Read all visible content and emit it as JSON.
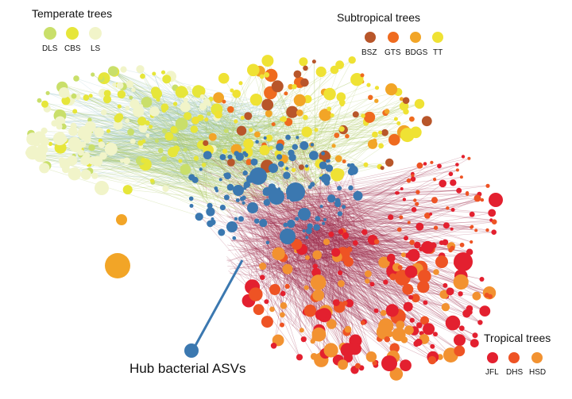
{
  "legends": {
    "temperate": {
      "title": "Temperate trees",
      "items": [
        {
          "label": "DLS",
          "color": "#c9df6a"
        },
        {
          "label": "CBS",
          "color": "#e6e63a"
        },
        {
          "label": "LS",
          "color": "#f1f4c9"
        }
      ]
    },
    "subtropical": {
      "title": "Subtropical trees",
      "items": [
        {
          "label": "BSZ",
          "color": "#b8562a"
        },
        {
          "label": "GTS",
          "color": "#ef6b1f"
        },
        {
          "label": "BDGS",
          "color": "#f2a527"
        },
        {
          "label": "TT",
          "color": "#efe234"
        }
      ]
    },
    "tropical": {
      "title": "Tropical trees",
      "items": [
        {
          "label": "JFL",
          "color": "#e3202f"
        },
        {
          "label": "DHS",
          "color": "#ee5324"
        },
        {
          "label": "HSD",
          "color": "#f29231"
        }
      ]
    }
  },
  "hub": {
    "label": "Hub bacterial ASVs",
    "color": "#3b78b0"
  },
  "edge_colors": {
    "temperate": "#a9c75a",
    "temperate_light": "#a8cfd0",
    "tropical": "#a0314f"
  }
}
